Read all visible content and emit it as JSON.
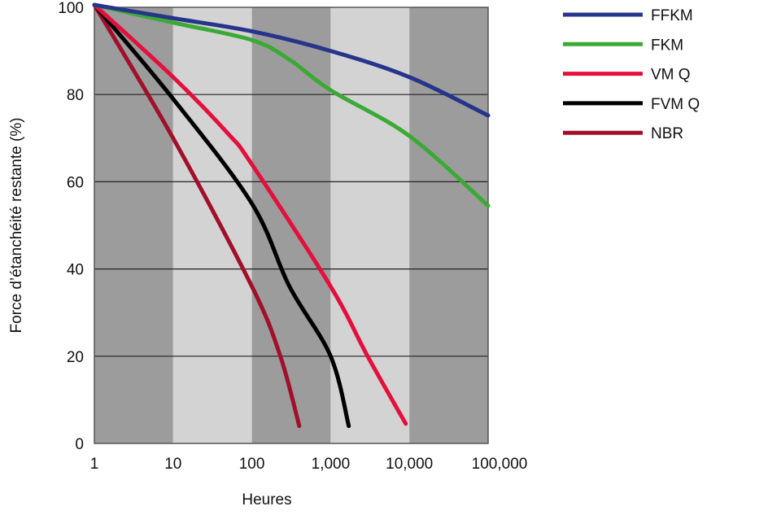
{
  "chart_data": {
    "type": "line",
    "title": "",
    "xlabel": "Heures",
    "ylabel": "Force d’étanchéité restante (%)",
    "xscale": "log",
    "xlim": [
      1,
      100000
    ],
    "ylim": [
      0,
      100
    ],
    "x_ticks": [
      1,
      10,
      100,
      1000,
      10000,
      100000
    ],
    "x_tick_labels": [
      "1",
      "10",
      "100",
      "1,000",
      "10,000",
      "100,000"
    ],
    "y_ticks": [
      0,
      20,
      40,
      60,
      80,
      100
    ],
    "y_tick_labels": [
      "0",
      "20",
      "40",
      "60",
      "80",
      "100"
    ],
    "grid": "horizontal",
    "background_bands": {
      "dark": "#9c9c9c",
      "light": "#d3d3d3"
    },
    "legend": "right",
    "series": [
      {
        "name": "FFKM",
        "color": "#27348b",
        "points": [
          [
            1,
            101
          ],
          [
            10,
            97.5
          ],
          [
            100,
            94.5
          ],
          [
            1000,
            90
          ],
          [
            10000,
            84
          ],
          [
            100000,
            75.2
          ]
        ]
      },
      {
        "name": "FKM",
        "color": "#3aaa35",
        "points": [
          [
            1,
            101
          ],
          [
            10,
            96.5
          ],
          [
            100,
            92.5
          ],
          [
            300,
            88
          ],
          [
            1000,
            81
          ],
          [
            10000,
            70.5
          ],
          [
            100000,
            54.5
          ]
        ]
      },
      {
        "name": "VM Q",
        "color": "#e30f3c",
        "points": [
          [
            1,
            101
          ],
          [
            10,
            84
          ],
          [
            50,
            71
          ],
          [
            100,
            64
          ],
          [
            1000,
            36
          ],
          [
            2950,
            20
          ],
          [
            9000,
            4.5
          ]
        ]
      },
      {
        "name": "FVM Q",
        "color": "#000000",
        "points": [
          [
            1,
            101
          ],
          [
            10,
            79
          ],
          [
            100,
            55
          ],
          [
            300,
            36
          ],
          [
            1000,
            20
          ],
          [
            1700,
            4
          ]
        ]
      },
      {
        "name": "NBR",
        "color": "#a0102a",
        "points": [
          [
            1,
            101
          ],
          [
            10,
            70
          ],
          [
            100,
            36
          ],
          [
            230,
            20
          ],
          [
            400,
            4
          ]
        ]
      }
    ]
  }
}
